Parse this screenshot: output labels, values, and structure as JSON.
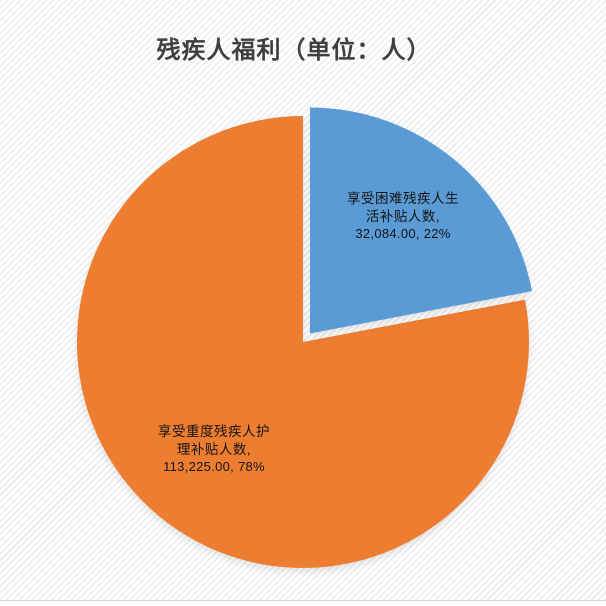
{
  "chart_data": {
    "type": "pie",
    "title": "残疾人福利（单位：人）",
    "unit": "人",
    "legend": "none",
    "label_position": "inside",
    "start_angle_deg": 0,
    "title_color": "#3f3f3f",
    "label_text_color": "#141414",
    "background_pattern": "light diagonal stripes",
    "slices": [
      {
        "name": "享受困难残疾人生活补贴人数",
        "value": 32084.0,
        "value_display": "32,084.00",
        "percent": 22,
        "percent_display": "22%",
        "color": "#5B9BD5",
        "exploded": true,
        "label_lines": [
          "享受困难残疾人生",
          "活补贴人数,",
          "32,084.00, 22%"
        ]
      },
      {
        "name": "享受重度残疾人护理补贴人数",
        "value": 113225.0,
        "value_display": "113,225.00",
        "percent": 78,
        "percent_display": "78%",
        "color": "#ED7D31",
        "exploded": false,
        "label_lines": [
          "享受重度残疾人护",
          "理补贴人数,",
          "113,225.00, 78%"
        ]
      }
    ]
  }
}
